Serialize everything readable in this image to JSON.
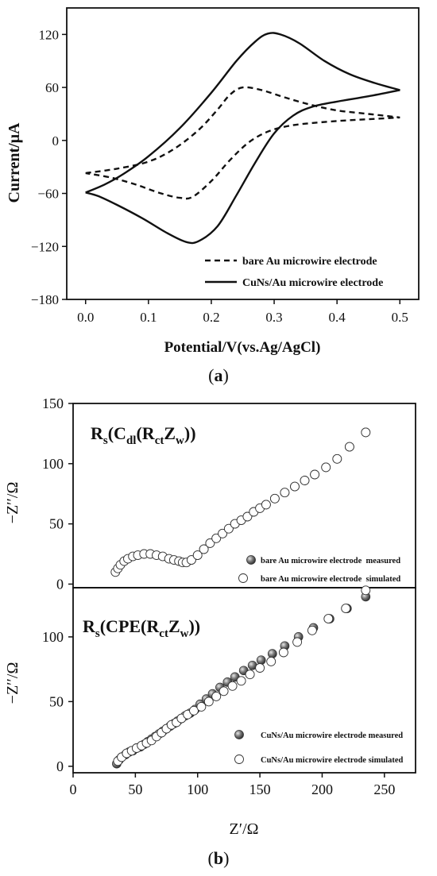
{
  "panel_a_caption": {
    "open": "(",
    "letter": "a",
    "close": ")"
  },
  "panel_b_caption": {
    "open": "(",
    "letter": "b",
    "close": ")"
  },
  "chart_data": [
    {
      "type": "line",
      "panel": "a",
      "xlabel": "Potential/V(vs.Ag/AgCl)",
      "ylabel": "Current/μA",
      "xlim": [
        -0.03,
        0.53
      ],
      "ylim": [
        -180,
        150
      ],
      "xticks": [
        0.0,
        0.1,
        0.2,
        0.3,
        0.4,
        0.5
      ],
      "xtick_labels": [
        "0.0",
        "0.1",
        "0.2",
        "0.3",
        "0.4",
        "0.5"
      ],
      "yticks": [
        -180,
        -120,
        -60,
        0,
        60,
        120
      ],
      "ytick_labels": [
        "−180",
        "−120",
        "−60",
        "0",
        "60",
        "120"
      ],
      "legend_position": "bottom-right",
      "series": [
        {
          "name": "bare Au microwire electrode",
          "style": "dashed",
          "color": "#111111",
          "forward": [
            [
              0.0,
              -37
            ],
            [
              0.05,
              -32
            ],
            [
              0.1,
              -24
            ],
            [
              0.14,
              -10
            ],
            [
              0.18,
              12
            ],
            [
              0.21,
              35
            ],
            [
              0.23,
              52
            ],
            [
              0.25,
              60
            ],
            [
              0.28,
              57
            ],
            [
              0.32,
              48
            ],
            [
              0.36,
              40
            ],
            [
              0.4,
              34
            ],
            [
              0.45,
              30
            ],
            [
              0.5,
              26
            ]
          ],
          "reverse": [
            [
              0.5,
              26
            ],
            [
              0.45,
              24
            ],
            [
              0.4,
              22
            ],
            [
              0.35,
              19
            ],
            [
              0.32,
              16
            ],
            [
              0.29,
              10
            ],
            [
              0.26,
              -2
            ],
            [
              0.23,
              -22
            ],
            [
              0.2,
              -46
            ],
            [
              0.17,
              -64
            ],
            [
              0.15,
              -65
            ],
            [
              0.12,
              -60
            ],
            [
              0.08,
              -50
            ],
            [
              0.04,
              -42
            ],
            [
              0.0,
              -37
            ]
          ]
        },
        {
          "name": "CuNs/Au microwire electrode",
          "style": "solid",
          "color": "#111111",
          "forward": [
            [
              0.0,
              -59
            ],
            [
              0.03,
              -50
            ],
            [
              0.06,
              -38
            ],
            [
              0.1,
              -18
            ],
            [
              0.15,
              14
            ],
            [
              0.2,
              54
            ],
            [
              0.24,
              90
            ],
            [
              0.27,
              112
            ],
            [
              0.29,
              121
            ],
            [
              0.31,
              120
            ],
            [
              0.34,
              110
            ],
            [
              0.38,
              90
            ],
            [
              0.42,
              75
            ],
            [
              0.46,
              65
            ],
            [
              0.5,
              57
            ]
          ],
          "reverse": [
            [
              0.5,
              57
            ],
            [
              0.45,
              50
            ],
            [
              0.4,
              44
            ],
            [
              0.36,
              38
            ],
            [
              0.33,
              28
            ],
            [
              0.3,
              8
            ],
            [
              0.27,
              -25
            ],
            [
              0.24,
              -62
            ],
            [
              0.21,
              -97
            ],
            [
              0.18,
              -114
            ],
            [
              0.16,
              -115
            ],
            [
              0.13,
              -105
            ],
            [
              0.09,
              -88
            ],
            [
              0.05,
              -73
            ],
            [
              0.02,
              -63
            ],
            [
              0.0,
              -59
            ]
          ]
        }
      ]
    },
    {
      "type": "scatter",
      "panel": "b-top",
      "annotation": {
        "main": "R",
        "sub1": "s",
        "mid1": "(C",
        "sub2": "dl",
        "mid2": "(R",
        "sub3": "ct",
        "mid3": "Z",
        "sub4": "w",
        "end": "))"
      },
      "ylabel": "−Z′′/Ω",
      "xlim": [
        0,
        275
      ],
      "ylim": [
        -3,
        150
      ],
      "yticks": [
        0,
        50,
        100,
        150
      ],
      "ytick_labels": [
        "0",
        "50",
        "100",
        "150"
      ],
      "legend_position": "bottom-right",
      "series": [
        {
          "name": "bare Au microwire electrode  measured",
          "marker": "filled-sphere",
          "points": [
            [
              91,
              18
            ],
            [
              95,
              20
            ],
            [
              100,
              24
            ],
            [
              105,
              29
            ],
            [
              110,
              34
            ],
            [
              115,
              38
            ],
            [
              120,
              42
            ],
            [
              125,
              46
            ],
            [
              130,
              50
            ],
            [
              135,
              53
            ],
            [
              140,
              56
            ],
            [
              145,
              60
            ],
            [
              150,
              63
            ],
            [
              155,
              66
            ],
            [
              162,
              71
            ],
            [
              170,
              76
            ],
            [
              178,
              81
            ],
            [
              186,
              86
            ],
            [
              194,
              91
            ],
            [
              203,
              97
            ],
            [
              212,
              104
            ],
            [
              222,
              114
            ],
            [
              235,
              126
            ]
          ]
        },
        {
          "name": "bare Au microwire electrode  simulated",
          "marker": "hollow-circle",
          "points": [
            [
              34,
              10
            ],
            [
              36,
              13
            ],
            [
              38,
              16
            ],
            [
              41,
              19
            ],
            [
              44,
              21
            ],
            [
              48,
              23
            ],
            [
              52,
              24
            ],
            [
              57,
              25
            ],
            [
              62,
              25
            ],
            [
              67,
              24
            ],
            [
              72,
              23
            ],
            [
              77,
              21
            ],
            [
              81,
              20
            ],
            [
              85,
              19
            ],
            [
              88,
              18
            ],
            [
              91,
              18
            ],
            [
              95,
              20
            ],
            [
              100,
              24
            ],
            [
              105,
              29
            ],
            [
              110,
              34
            ],
            [
              115,
              38
            ],
            [
              120,
              42
            ],
            [
              125,
              46
            ],
            [
              130,
              50
            ],
            [
              135,
              53
            ],
            [
              140,
              56
            ],
            [
              145,
              60
            ],
            [
              150,
              63
            ],
            [
              155,
              66
            ],
            [
              162,
              71
            ],
            [
              170,
              76
            ],
            [
              178,
              81
            ],
            [
              186,
              86
            ],
            [
              194,
              91
            ],
            [
              203,
              97
            ],
            [
              212,
              104
            ],
            [
              222,
              114
            ],
            [
              235,
              126
            ]
          ]
        }
      ]
    },
    {
      "type": "scatter",
      "panel": "b-bottom",
      "annotation": {
        "main": "R",
        "sub1": "s",
        "mid1": "(CPE(R",
        "sub2": "ct",
        "mid2": "Z",
        "sub3": "w",
        "end": "))"
      },
      "xlabel": "Z′/Ω",
      "ylabel": "−Z′′/Ω",
      "xlim": [
        0,
        275
      ],
      "ylim": [
        -5,
        138
      ],
      "xticks": [
        0,
        50,
        100,
        150,
        200,
        250
      ],
      "xtick_labels": [
        "0",
        "50",
        "100",
        "150",
        "200",
        "250"
      ],
      "yticks": [
        0,
        50,
        100
      ],
      "ytick_labels": [
        "0",
        "50",
        "100"
      ],
      "legend_position": "bottom-right",
      "series": [
        {
          "name": "CuNs/Au microwire electrode measured",
          "marker": "filled-sphere",
          "points": [
            [
              35,
              2
            ],
            [
              37,
              5
            ],
            [
              39,
              7
            ],
            [
              42,
              9
            ],
            [
              45,
              11
            ],
            [
              48,
              12
            ],
            [
              51,
              14
            ],
            [
              54,
              15
            ],
            [
              57,
              17
            ],
            [
              60,
              19
            ],
            [
              63,
              21
            ],
            [
              66,
              23
            ],
            [
              69,
              25
            ],
            [
              72,
              27
            ],
            [
              75,
              29
            ],
            [
              78,
              31
            ],
            [
              81,
              33
            ],
            [
              84,
              35
            ],
            [
              87,
              37
            ],
            [
              90,
              39
            ],
            [
              94,
              41
            ],
            [
              98,
              44
            ],
            [
              102,
              48
            ],
            [
              107,
              52
            ],
            [
              112,
              56
            ],
            [
              118,
              61
            ],
            [
              124,
              65
            ],
            [
              130,
              69
            ],
            [
              137,
              74
            ],
            [
              144,
              78
            ],
            [
              151,
              82
            ],
            [
              160,
              87
            ],
            [
              170,
              93
            ],
            [
              181,
              100
            ],
            [
              193,
              107
            ],
            [
              206,
              114
            ],
            [
              220,
              122
            ],
            [
              235,
              131
            ]
          ]
        },
        {
          "name": "CuNs/Au microwire electrode simulated",
          "marker": "hollow-circle",
          "points": [
            [
              36,
              4
            ],
            [
              39,
              7
            ],
            [
              43,
              10
            ],
            [
              47,
              12
            ],
            [
              51,
              14
            ],
            [
              55,
              16
            ],
            [
              59,
              18
            ],
            [
              63,
              20
            ],
            [
              67,
              23
            ],
            [
              71,
              26
            ],
            [
              75,
              29
            ],
            [
              79,
              32
            ],
            [
              83,
              34
            ],
            [
              87,
              37
            ],
            [
              92,
              40
            ],
            [
              97,
              43
            ],
            [
              103,
              46
            ],
            [
              109,
              50
            ],
            [
              115,
              54
            ],
            [
              121,
              58
            ],
            [
              128,
              62
            ],
            [
              135,
              66
            ],
            [
              142,
              71
            ],
            [
              150,
              76
            ],
            [
              159,
              81
            ],
            [
              169,
              88
            ],
            [
              180,
              96
            ],
            [
              192,
              105
            ],
            [
              205,
              114
            ],
            [
              219,
              122
            ],
            [
              235,
              136
            ]
          ]
        }
      ]
    }
  ]
}
